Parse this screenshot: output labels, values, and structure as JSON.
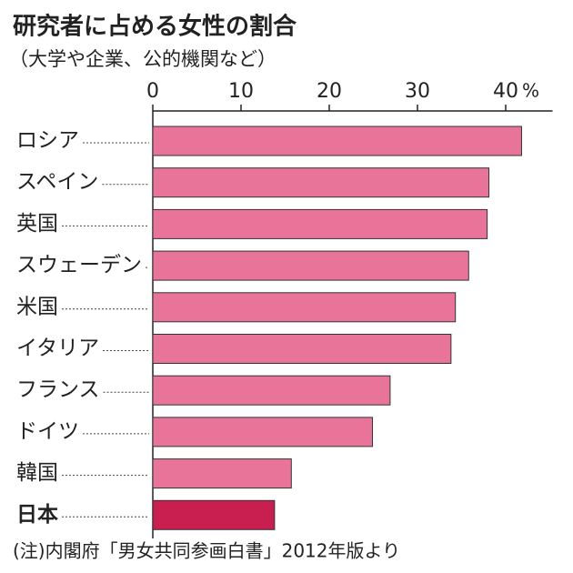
{
  "chart_data": {
    "type": "barh",
    "title": "研究者に占める女性の割合",
    "subtitle": "（大学や企業、公的機関など）",
    "source": "(注)内閣府「男女共同参画白書」2012年版より",
    "categories": [
      "ロシア",
      "スペイン",
      "英国",
      "スウェーデン",
      "米国",
      "イタリア",
      "フランス",
      "ドイツ",
      "韓国",
      "日本"
    ],
    "values": [
      41.8,
      38.1,
      37.9,
      35.8,
      34.3,
      33.8,
      26.9,
      24.9,
      15.7,
      13.8
    ],
    "colors": [
      "#e87499",
      "#e87499",
      "#e87499",
      "#e87499",
      "#e87499",
      "#e87499",
      "#e87499",
      "#e87499",
      "#e87499",
      "#c81f50"
    ],
    "highlight": 9,
    "xlim": [
      0,
      45
    ],
    "xticks": [
      0,
      10,
      20,
      30,
      40
    ],
    "unit": "%"
  }
}
